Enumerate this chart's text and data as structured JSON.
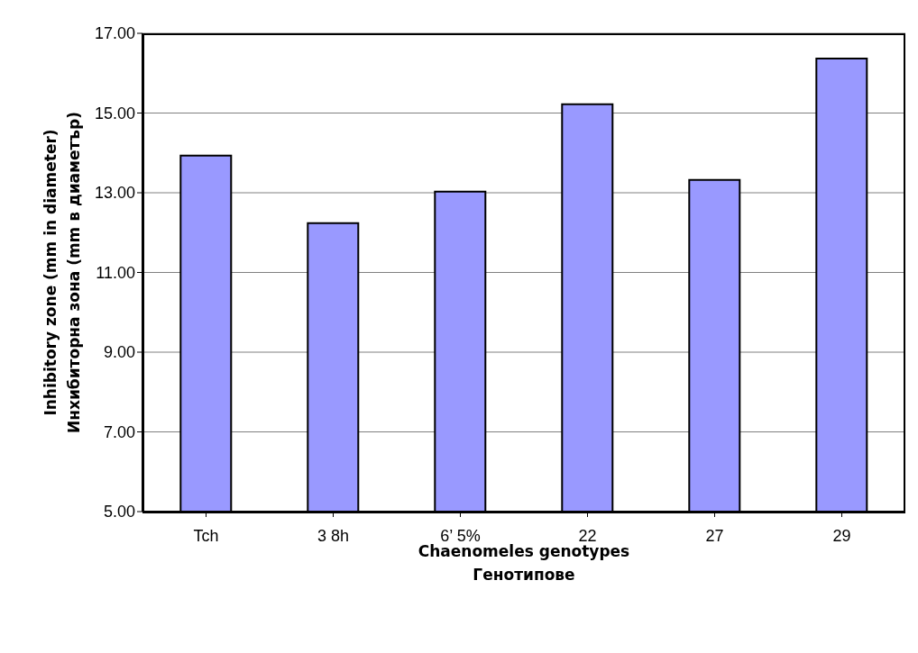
{
  "chart_data": {
    "type": "bar",
    "xlabel": "Chaenomeles genotypes\nГенотипове",
    "ylabel": "Inhibitory  zone (mm in diameter)\nИнхибиторна зона (mm в диаметър)",
    "categories": [
      "Tch",
      "3  8h",
      "6’ 5%",
      "22",
      "27",
      "29"
    ],
    "values": [
      13.93,
      12.24,
      13.03,
      15.22,
      13.32,
      16.37
    ],
    "color": "#9999ff",
    "ylim": [
      5,
      17
    ],
    "yticks": [
      {
        "value": 5,
        "label": "5.00"
      },
      {
        "value": 7,
        "label": "7.00"
      },
      {
        "value": 9,
        "label": "9.00"
      },
      {
        "value": 11,
        "label": "11.00"
      },
      {
        "value": 13,
        "label": "13.00"
      },
      {
        "value": 15,
        "label": "15.00"
      },
      {
        "value": 17,
        "label": "17.00"
      }
    ],
    "grid": "y"
  }
}
